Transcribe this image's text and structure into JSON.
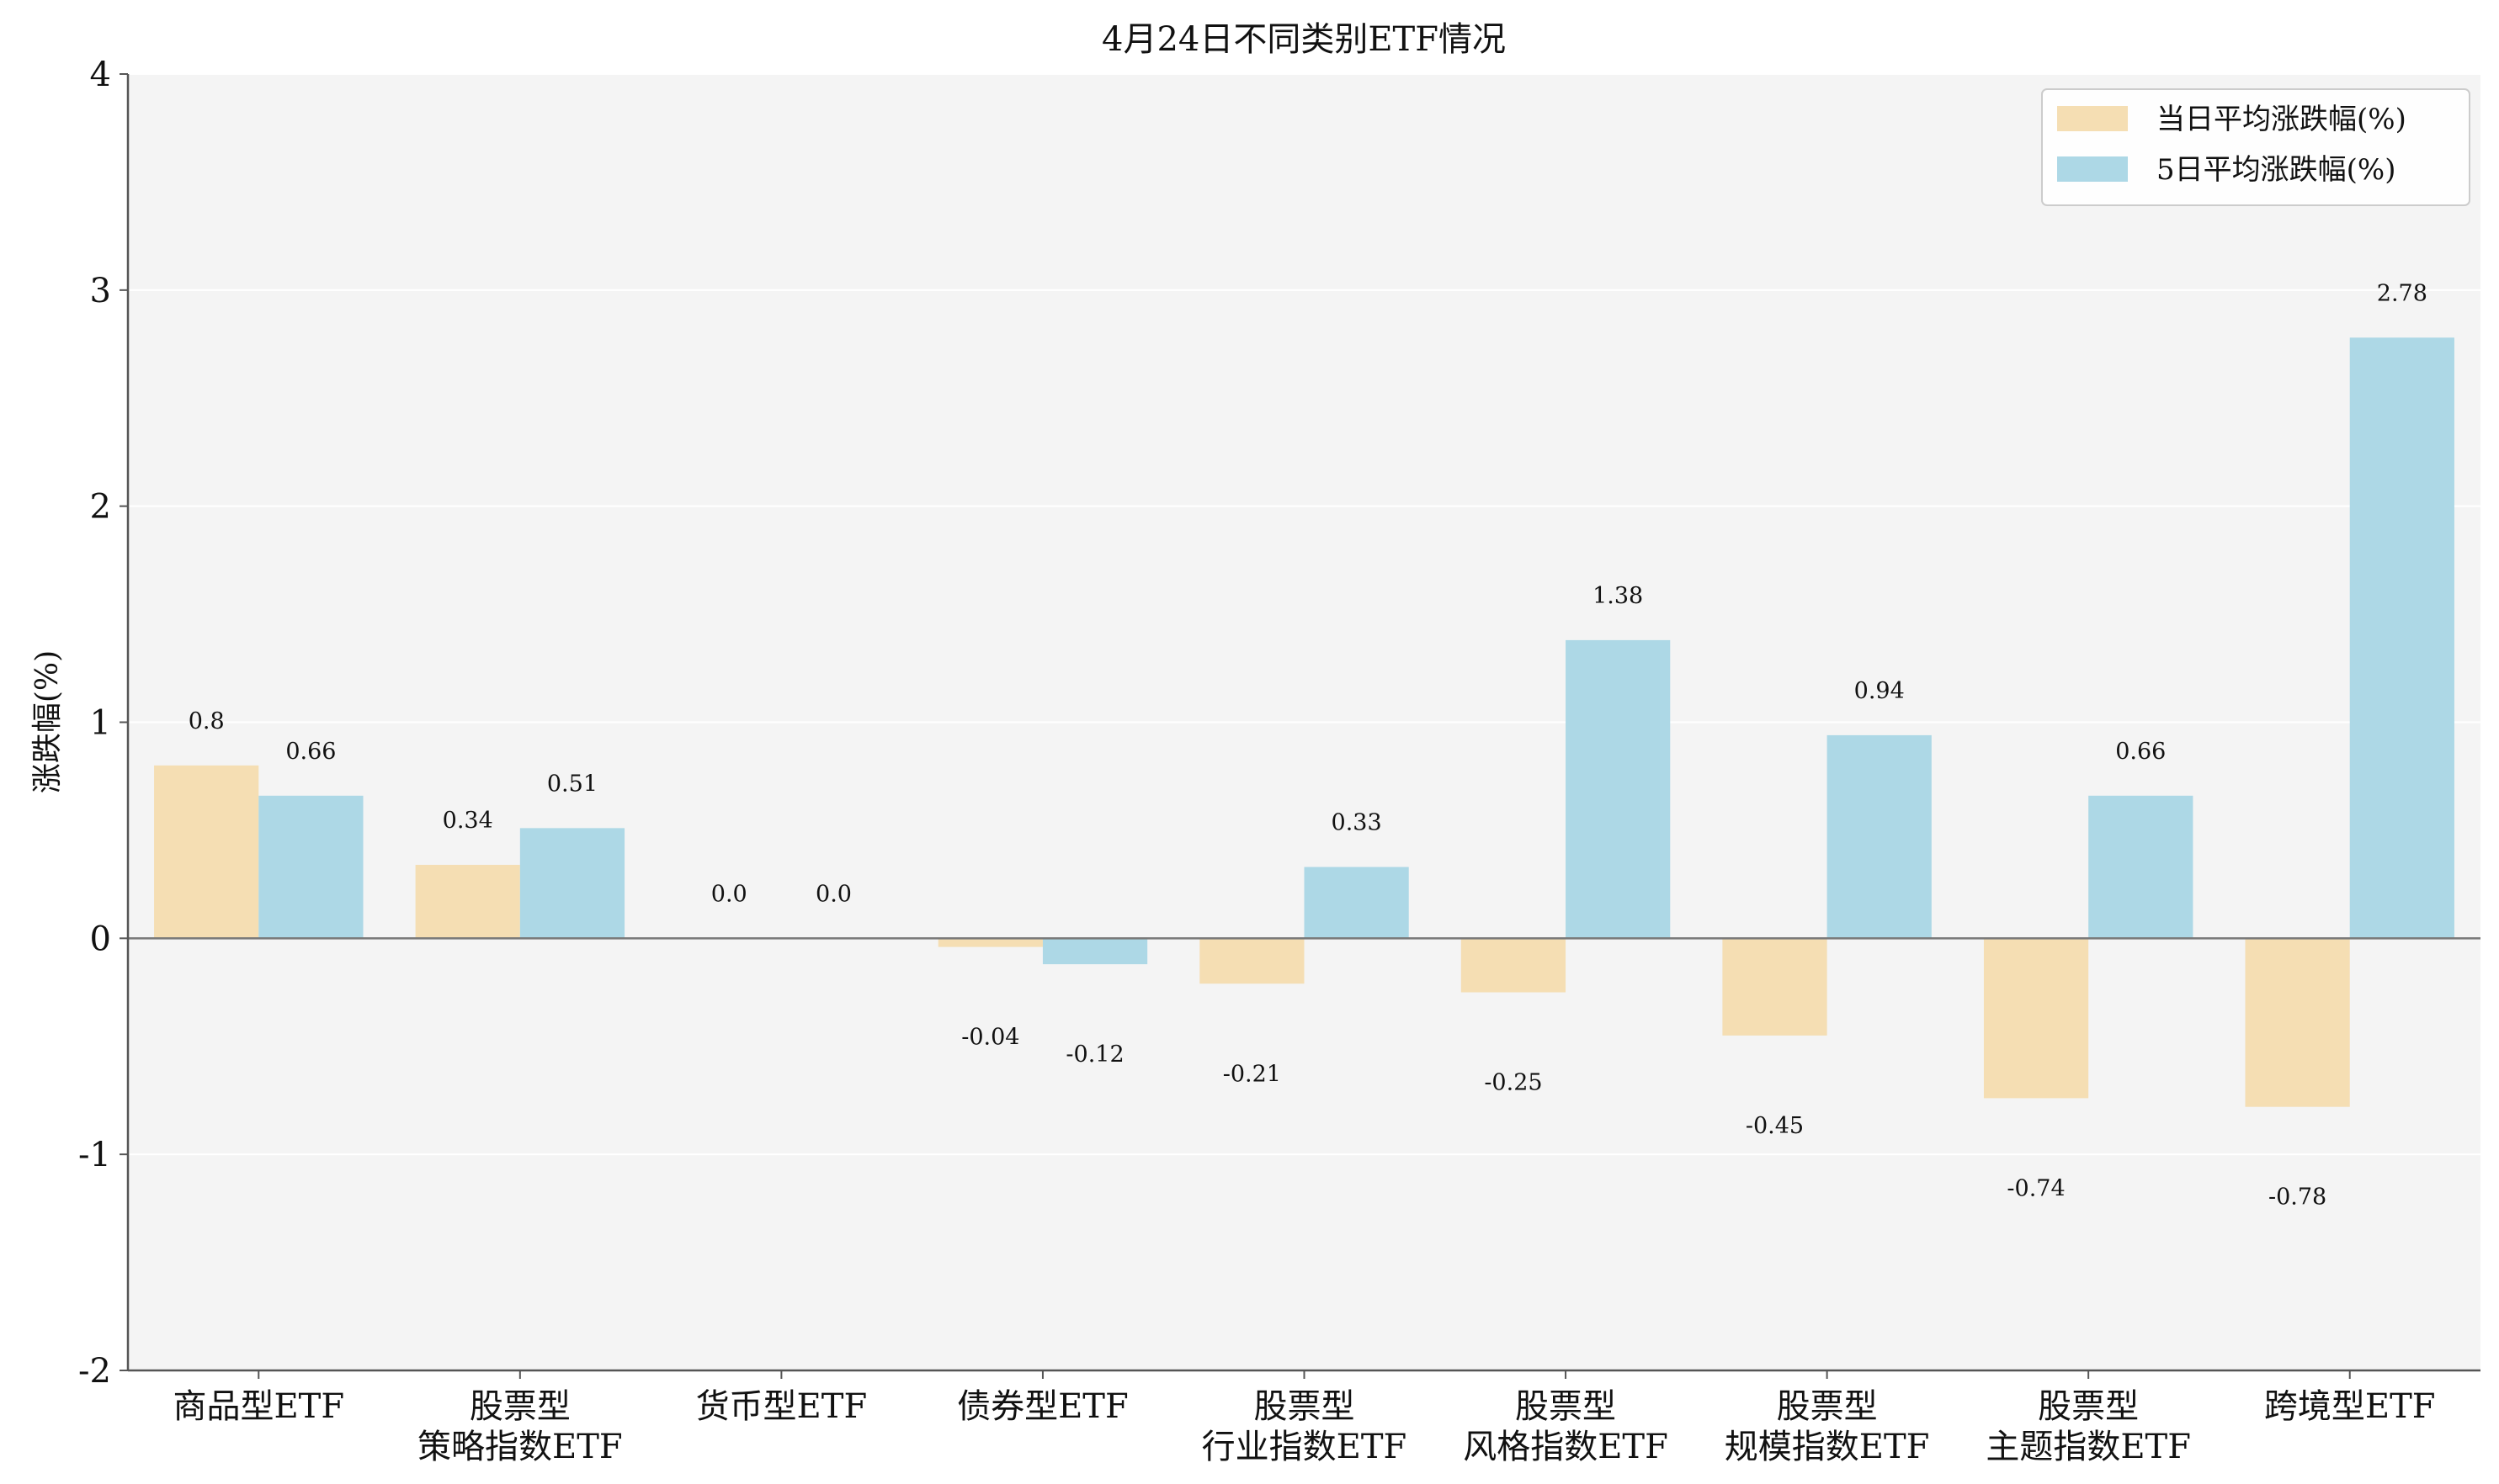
{
  "chart_data": {
    "type": "bar",
    "title": "4月24日不同类别ETF情况",
    "ylabel": "涨跌幅(%)",
    "xlabel": "",
    "ylim": [
      -2,
      4
    ],
    "yticks": [
      "4",
      "3",
      "2",
      "1",
      "0",
      "-1",
      "-2"
    ],
    "grid": true,
    "legend_position": "top-right",
    "categories": [
      [
        "商品型ETF"
      ],
      [
        "股票型",
        "策略指数ETF"
      ],
      [
        "货币型ETF"
      ],
      [
        "债券型ETF"
      ],
      [
        "股票型",
        "行业指数ETF"
      ],
      [
        "股票型",
        "风格指数ETF"
      ],
      [
        "股票型",
        "规模指数ETF"
      ],
      [
        "股票型",
        "主题指数ETF"
      ],
      [
        "跨境型ETF"
      ]
    ],
    "series": [
      {
        "name": "当日平均涨跌幅(%)",
        "color": "#f5deb3",
        "values": [
          0.8,
          0.34,
          0.0,
          -0.04,
          -0.21,
          -0.25,
          -0.45,
          -0.74,
          -0.78
        ],
        "labels": [
          "0.8",
          "0.34",
          "0.0",
          "-0.04",
          "-0.21",
          "-0.25",
          "-0.45",
          "-0.74",
          "-0.78"
        ]
      },
      {
        "name": "5日平均涨跌幅(%)",
        "color": "#add8e6",
        "values": [
          0.66,
          0.51,
          0.0,
          -0.12,
          0.33,
          1.38,
          0.94,
          0.66,
          2.78
        ],
        "labels": [
          "0.66",
          "0.51",
          "0.0",
          "-0.12",
          "0.33",
          "1.38",
          "0.94",
          "0.66",
          "2.78"
        ]
      }
    ],
    "colors": {
      "plot_bg": "#f4f4f4",
      "grid": "#ffffff",
      "axis": "#555555",
      "zero_line": "#777777"
    }
  }
}
